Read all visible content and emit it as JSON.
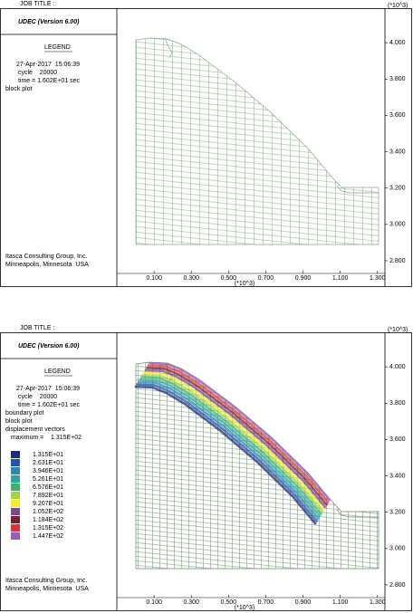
{
  "chart_data": [
    {
      "type": "block-plot",
      "job_title": "JOB TITLE :",
      "title": "UDEC (Version 6.00)",
      "legend_title": "LEGEND",
      "info": [
        "27-Apr-2017  15:06:39",
        " cycle    20000",
        " time = 1.602E+01 sec",
        "block plot"
      ],
      "footer": [
        "Itasca Consulting Group, Inc.",
        "Minneapolis, Minnesota  USA"
      ],
      "axis_scale": "(*10^3)",
      "xlim": [
        -0.1,
        1.34
      ],
      "ylim": [
        2.73,
        4.19
      ],
      "xticks": [
        {
          "value": 0.1,
          "label": "0.100"
        },
        {
          "value": 0.3,
          "label": "0.300"
        },
        {
          "value": 0.5,
          "label": "0.500"
        },
        {
          "value": 0.7,
          "label": "0.700"
        },
        {
          "value": 0.9,
          "label": "0.900"
        },
        {
          "value": 1.1,
          "label": "1.100"
        },
        {
          "value": 1.3,
          "label": "1.300"
        }
      ],
      "yticks": [
        {
          "value": 4.0,
          "label": "4.000"
        },
        {
          "value": 3.8,
          "label": "3.800"
        },
        {
          "value": 3.6,
          "label": "3.600"
        },
        {
          "value": 3.4,
          "label": "3.400"
        },
        {
          "value": 3.2,
          "label": "3.200"
        },
        {
          "value": 3.0,
          "label": "3.000"
        },
        {
          "value": 2.8,
          "label": "2.800"
        }
      ],
      "mesh_color": "#8aa88a"
    },
    {
      "type": "block-plot",
      "job_title": "JOB TITLE :",
      "title": "UDEC (Version 6.00)",
      "legend_title": "LEGEND",
      "info": [
        "27-Apr-2017  15:06:39",
        " cycle    20000",
        " time = 1.602E+01 sec",
        "boundary plot",
        "block plot",
        "displacement vectors",
        "   maximum =    1.315E+02"
      ],
      "footer": [
        "Itasca Consulting Group, Inc.",
        "Minneapolis, Minnesota  USA"
      ],
      "axis_scale": "(*10^3)",
      "xlim": [
        -0.1,
        1.34
      ],
      "ylim": [
        2.73,
        4.19
      ],
      "xticks": [
        {
          "value": 0.1,
          "label": "0.100"
        },
        {
          "value": 0.3,
          "label": "0.300"
        },
        {
          "value": 0.5,
          "label": "0.500"
        },
        {
          "value": 0.7,
          "label": "0.700"
        },
        {
          "value": 0.9,
          "label": "0.900"
        },
        {
          "value": 1.1,
          "label": "1.100"
        },
        {
          "value": 1.3,
          "label": "1.300"
        }
      ],
      "yticks": [
        {
          "value": 4.0,
          "label": "4.000"
        },
        {
          "value": 3.8,
          "label": "3.800"
        },
        {
          "value": 3.6,
          "label": "3.600"
        },
        {
          "value": 3.4,
          "label": "3.400"
        },
        {
          "value": 3.2,
          "label": "3.200"
        },
        {
          "value": 3.0,
          "label": "3.000"
        },
        {
          "value": 2.8,
          "label": "2.800"
        }
      ],
      "mesh_color": "#6f8a6f",
      "contours": {
        "values": [
          13.15,
          26.31,
          39.46,
          52.61,
          65.76,
          78.92,
          92.07,
          105.2,
          118.4,
          131.5,
          144.7
        ],
        "value_labels": [
          "1.315E+01",
          "2.631E+01",
          "3.946E+01",
          "5.261E+01",
          "6.576E+01",
          "7.892E+01",
          "9.207E+01",
          "1.052E+02",
          "1.184E+02",
          "1.315E+02",
          "1.447E+02"
        ],
        "colors": [
          "#1f2a7a",
          "#2155a8",
          "#2e86b0",
          "#2aa79a",
          "#3db36a",
          "#a6d24a",
          "#f2ec2a",
          "#7a4a8c",
          "#7a1f2e",
          "#d9343c",
          "#9a5cb8"
        ]
      }
    }
  ]
}
